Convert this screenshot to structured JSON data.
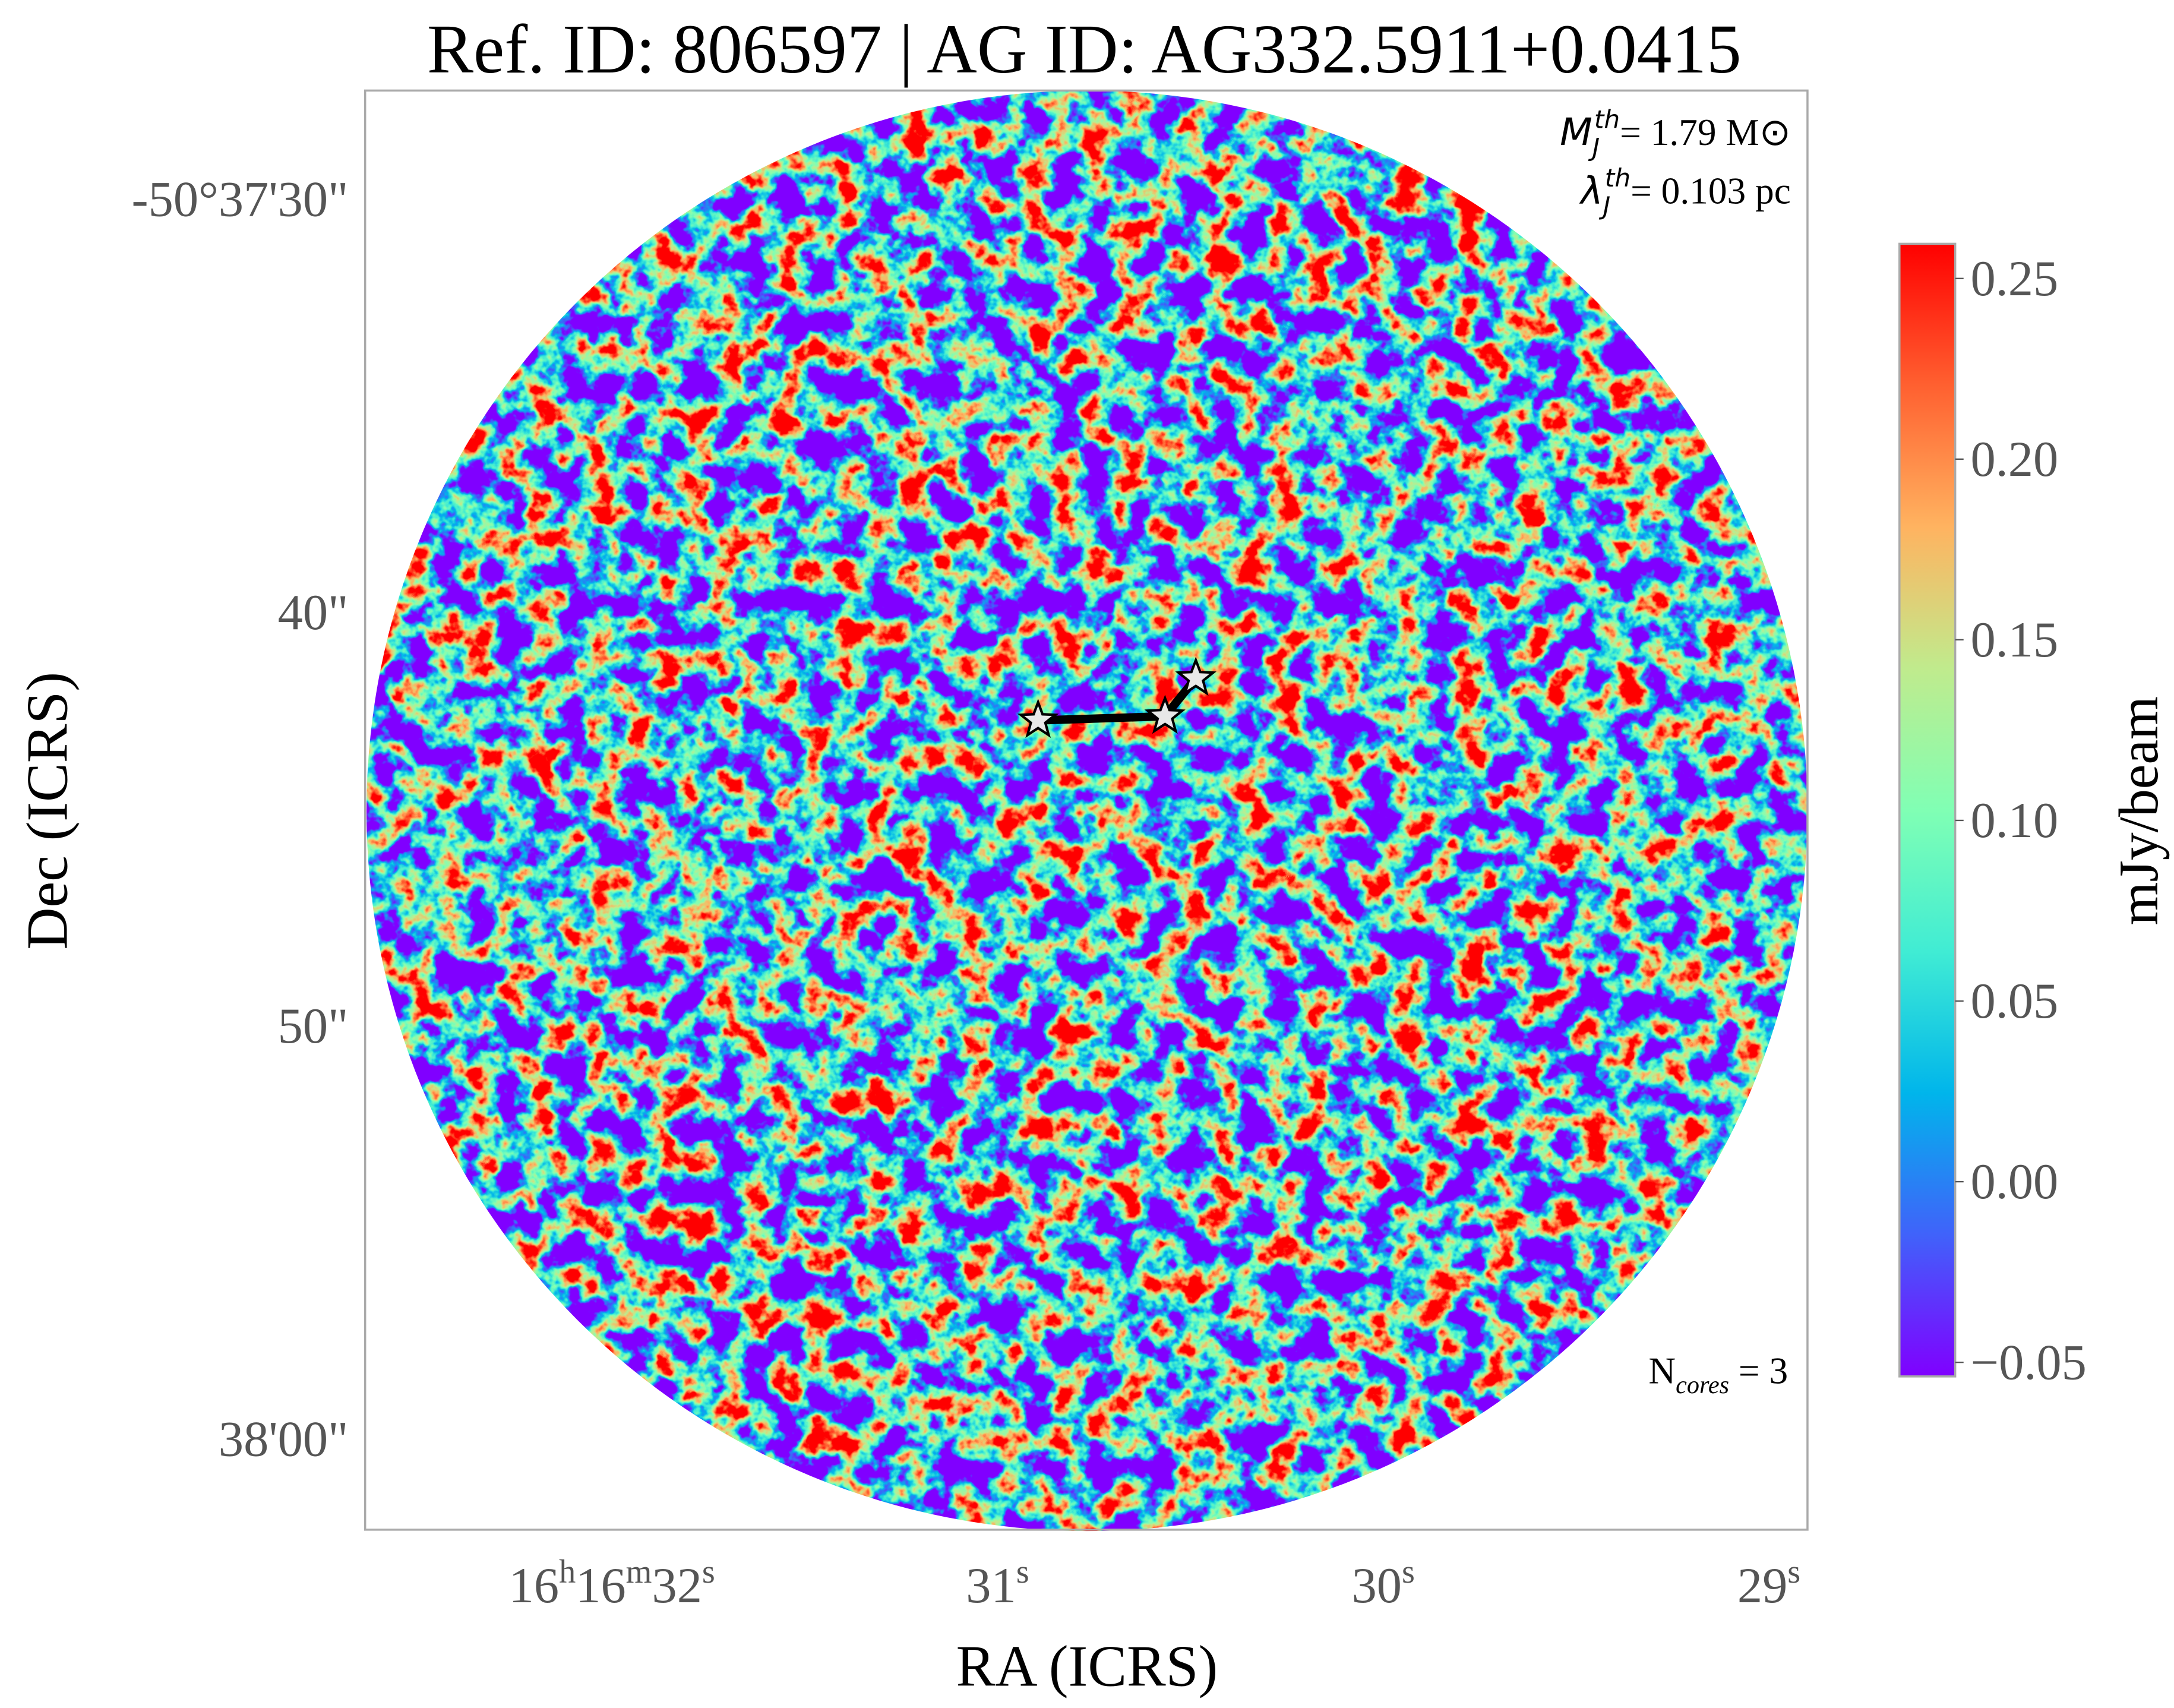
{
  "chart_data": {
    "type": "image",
    "title": "Ref. ID: 806597 | AG ID: AG332.5911+0.0415",
    "xlabel": "RA (ICRS)",
    "ylabel": "Dec (ICRS)",
    "xlim": [
      32.64,
      28.9
    ],
    "ylim": [
      27.37,
      62.19
    ],
    "xticks": [
      {
        "value": 32,
        "label": "16h16m32s"
      },
      {
        "value": 31,
        "label": "31s"
      },
      {
        "value": 30,
        "label": "30s"
      },
      {
        "value": 29,
        "label": "29s"
      }
    ],
    "yticks": [
      {
        "value": 30,
        "label": "-50°37'30\""
      },
      {
        "value": 40,
        "label": "40\""
      },
      {
        "value": 50,
        "label": "50\""
      },
      {
        "value": 60,
        "label": "38'00\""
      }
    ],
    "colorbar": {
      "label": "mJy/beam",
      "clim": [
        -0.0539,
        0.2596
      ],
      "ticks": [
        {
          "value": -0.05,
          "label": "−0.05"
        },
        {
          "value": 0,
          "label": "0.00"
        },
        0.05,
        {
          "value": 0.1,
          "label": "0.10"
        },
        0.15,
        {
          "value": 0.2,
          "label": "0.20"
        },
        0.25
      ],
      "colormap": [
        "#8000ff",
        "#4062fa",
        "#00b5eb",
        "#40ecd4",
        "#80ffb4",
        "#c0eb8d",
        "#ffb360",
        "#ff6030",
        "#ff0000"
      ]
    },
    "cores": {
      "x": [
        30.895,
        30.566,
        30.486
      ],
      "y": [
        42.61,
        42.51,
        41.59
      ],
      "color": "#e8e8e8",
      "line_color": "#000000"
    },
    "annotations": {
      "mass": {
        "symbol": "M",
        "sub": "J",
        "sup": "th",
        "text": "= 1.79 M⊙"
      },
      "length": {
        "symbol": "λ",
        "sub": "J",
        "sup": "th",
        "text": "= 0.103 pc"
      },
      "ncores": {
        "symbol": "N",
        "sub": "cores",
        "text": " = 3"
      }
    }
  }
}
